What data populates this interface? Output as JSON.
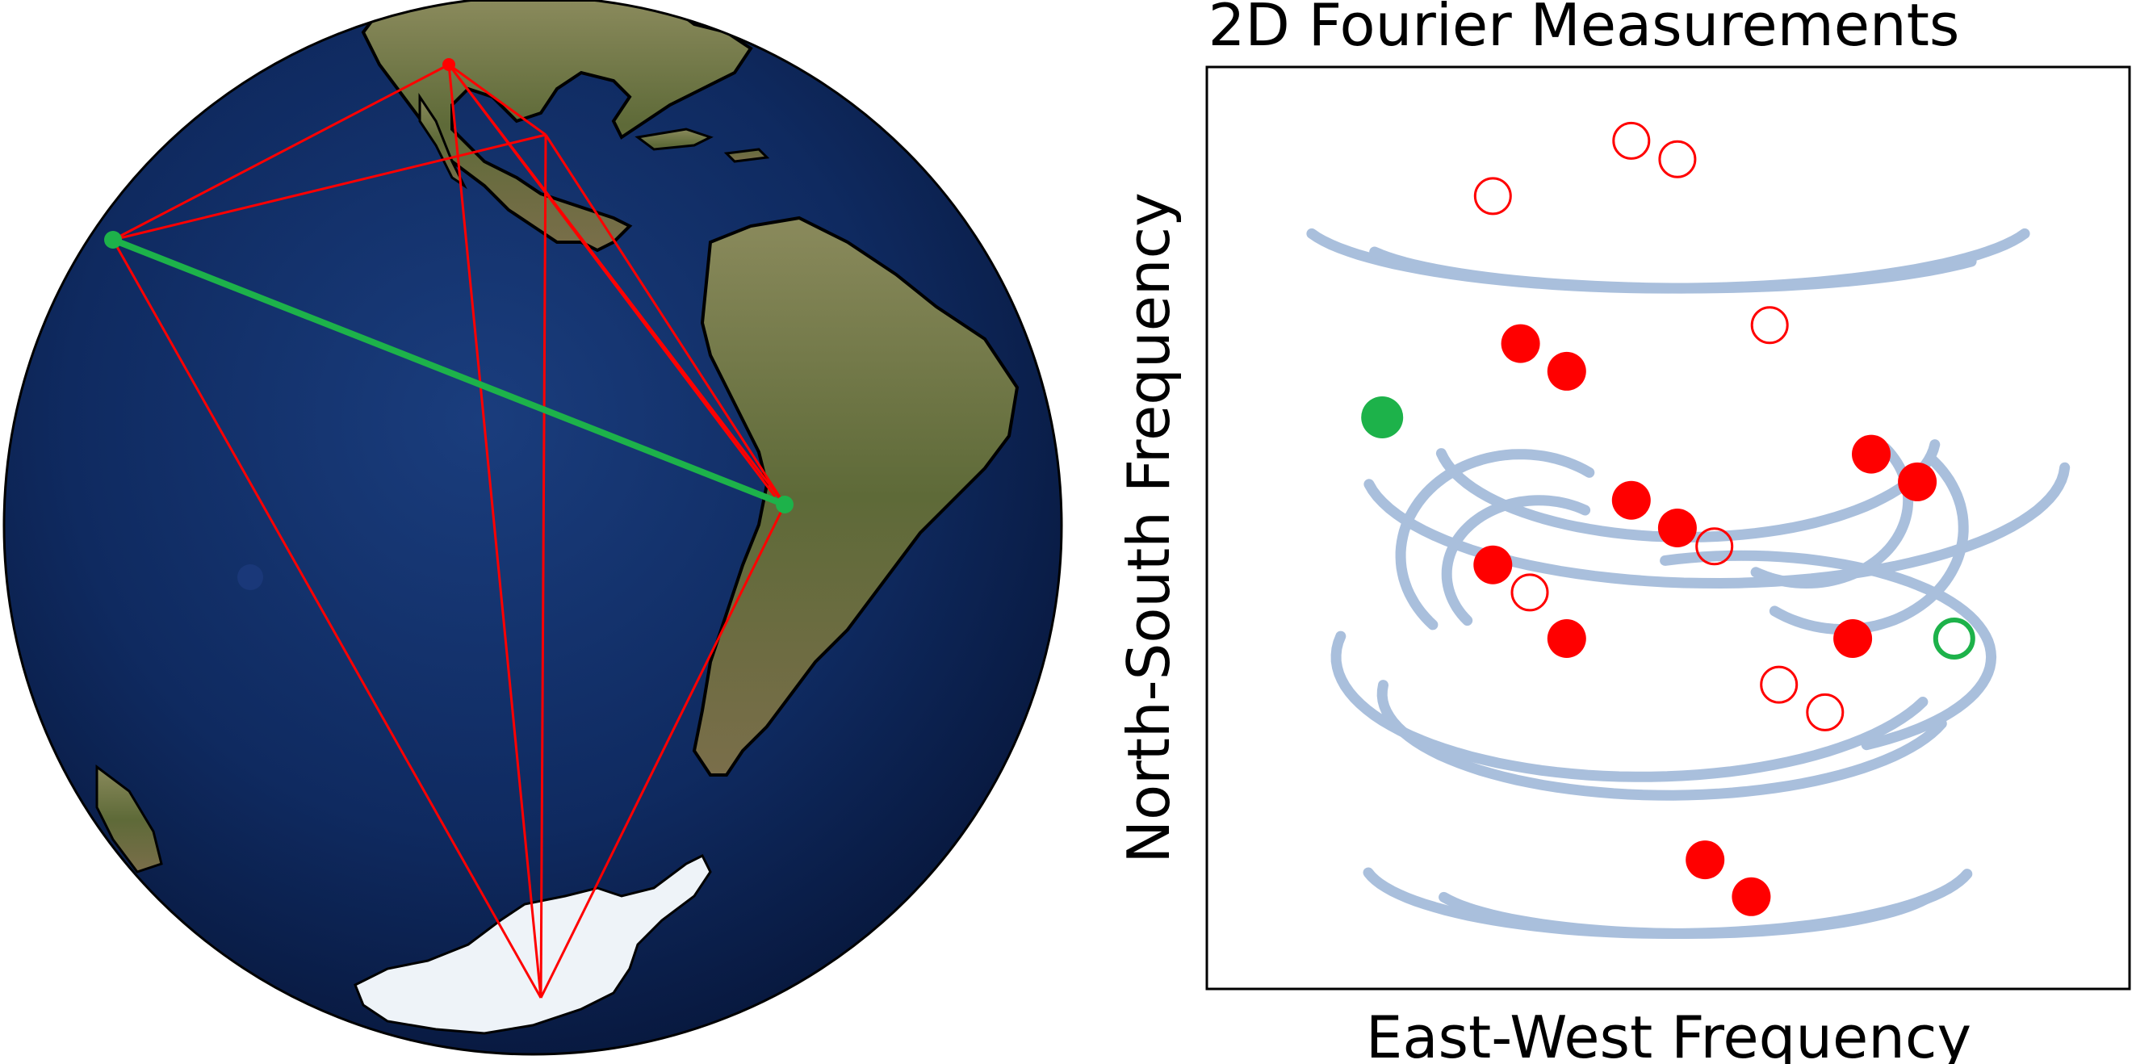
{
  "panel_right": {
    "title": "2D Fourier Measurements",
    "xlabel": "East-West Frequency",
    "ylabel": "North-South Frequency"
  },
  "colors": {
    "station_link": "#ff0000",
    "highlight_link": "#1db24a",
    "uv_track": "#a9bfdc",
    "measurement_filled": "#ff0000",
    "measurement_open": "#ff0000",
    "highlight_measurement": "#1db24a",
    "ocean": "#0d2354",
    "land": "#6a7040",
    "ice": "#eef3f8"
  },
  "chart_data": {
    "type": "scatter",
    "title": "2D Fourier Measurements",
    "xlabel": "East-West Frequency",
    "ylabel": "North-South Frequency",
    "grid": false,
    "xlim": [
      0,
      100
    ],
    "ylim": [
      0,
      100
    ],
    "tracks": [
      {
        "cx": 50,
        "cy": 84,
        "rx": 40,
        "ry": 8,
        "a0": 195,
        "a1": 345
      },
      {
        "cx": 52,
        "cy": 82,
        "rx": 36,
        "ry": 6,
        "a0": 200,
        "a1": 330
      },
      {
        "cx": 55,
        "cy": 57,
        "rx": 38,
        "ry": 13,
        "a0": 190,
        "a1": 360
      },
      {
        "cx": 52,
        "cy": 60,
        "rx": 27,
        "ry": 11,
        "a0": 190,
        "a1": 355
      },
      {
        "cx": 34,
        "cy": 47,
        "rx": 13,
        "ry": 11,
        "a0": 55,
        "a1": 225
      },
      {
        "cx": 36,
        "cy": 45,
        "rx": 10,
        "ry": 8,
        "a0": 60,
        "a1": 220
      },
      {
        "cx": 69,
        "cy": 50,
        "rx": 13,
        "ry": 11,
        "a0": 235,
        "a1": 405
      },
      {
        "cx": 65,
        "cy": 53,
        "rx": 11,
        "ry": 9,
        "a0": 240,
        "a1": 400
      },
      {
        "cx": 50,
        "cy": 32,
        "rx": 31,
        "ry": 11,
        "a0": 175,
        "a1": 345
      },
      {
        "cx": 47,
        "cy": 36,
        "rx": 33,
        "ry": 13,
        "a0": 170,
        "a1": 340
      },
      {
        "cx": 58,
        "cy": 36,
        "rx": 27,
        "ry": 11,
        "a0": 300,
        "a1": 470
      },
      {
        "cx": 50,
        "cy": 14,
        "rx": 33,
        "ry": 8,
        "a0": 190,
        "a1": 350
      },
      {
        "cx": 52,
        "cy": 12,
        "rx": 28,
        "ry": 6,
        "a0": 200,
        "a1": 340
      }
    ],
    "series": [
      {
        "points": [
          [
            34,
            70
          ],
          [
            39,
            67
          ],
          [
            72,
            58
          ],
          [
            77,
            55
          ],
          [
            46,
            53
          ],
          [
            51,
            50
          ],
          [
            31,
            46
          ],
          [
            39,
            38
          ],
          [
            54,
            14
          ],
          [
            59,
            10
          ],
          [
            70,
            38
          ]
        ]
      },
      {
        "points": [
          [
            46,
            92
          ],
          [
            51,
            90
          ],
          [
            31,
            86
          ],
          [
            61,
            72
          ],
          [
            55,
            48
          ],
          [
            35,
            43
          ],
          [
            62,
            33
          ],
          [
            67,
            30
          ]
        ]
      },
      {
        "points": [
          [
            19,
            62
          ]
        ]
      },
      {
        "points": [
          [
            81,
            38
          ]
        ]
      }
    ],
    "legend": "none"
  }
}
